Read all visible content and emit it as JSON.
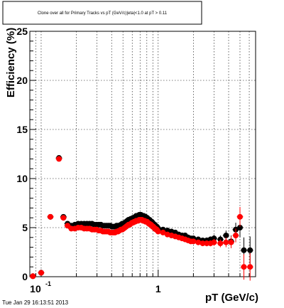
{
  "chart_data": {
    "type": "scatter",
    "title": "Clone  over all for Primary Tracks vs pT (GeV/c)|eta|<1.0 at pT > 0.11",
    "xlabel": "pT (GeV/c)",
    "ylabel": "Efficiency (%)",
    "x_scale": "log",
    "xlim": [
      0.08,
      6.8
    ],
    "ylim": [
      0,
      25
    ],
    "y_ticks": [
      0,
      5,
      10,
      15,
      20,
      25
    ],
    "x_tick_labels": [
      {
        "value": 0.1,
        "base": "10",
        "exp": "-1"
      },
      {
        "value": 1,
        "base": "1",
        "exp": ""
      }
    ],
    "grid": true,
    "timestamp": "Tue Jan 29 16:13:51 2013",
    "series": [
      {
        "color": "#000000",
        "x": [
          0.085,
          0.1,
          0.12,
          0.142,
          0.155,
          0.168,
          0.181,
          0.194,
          0.207,
          0.22,
          0.233,
          0.246,
          0.259,
          0.272,
          0.285,
          0.298,
          0.311,
          0.324,
          0.337,
          0.35,
          0.363,
          0.376,
          0.389,
          0.402,
          0.415,
          0.428,
          0.441,
          0.454,
          0.467,
          0.48,
          0.493,
          0.506,
          0.519,
          0.532,
          0.545,
          0.558,
          0.571,
          0.584,
          0.597,
          0.61,
          0.623,
          0.636,
          0.649,
          0.662,
          0.675,
          0.688,
          0.701,
          0.714,
          0.727,
          0.74,
          0.753,
          0.766,
          0.779,
          0.792,
          0.805,
          0.818,
          0.831,
          0.844,
          0.857,
          0.87,
          0.883,
          0.896,
          0.909,
          0.922,
          0.935,
          0.948,
          0.961,
          0.974,
          0.987,
          1.0,
          1.1,
          1.2,
          1.3,
          1.4,
          1.5,
          1.6,
          1.7,
          1.8,
          1.9,
          2.0,
          2.2,
          2.4,
          2.6,
          2.8,
          3.0,
          3.4,
          3.8,
          4.2,
          4.6,
          5.0,
          5.4,
          6.1
        ],
        "y": [
          0.05,
          0.4,
          6.1,
          12.1,
          6.1,
          5.4,
          5.2,
          5.3,
          5.4,
          5.4,
          5.4,
          5.4,
          5.4,
          5.4,
          5.3,
          5.3,
          5.3,
          5.3,
          5.2,
          5.2,
          5.2,
          5.2,
          5.2,
          5.1,
          5.1,
          5.1,
          5.2,
          5.2,
          5.2,
          5.3,
          5.4,
          5.4,
          5.5,
          5.6,
          5.7,
          5.8,
          5.8,
          5.9,
          5.9,
          6.0,
          6.0,
          6.1,
          6.2,
          6.2,
          6.2,
          6.3,
          6.3,
          6.3,
          6.2,
          6.2,
          6.2,
          6.1,
          6.1,
          6.0,
          6.0,
          5.9,
          5.8,
          5.8,
          5.7,
          5.6,
          5.6,
          5.5,
          5.4,
          5.3,
          5.3,
          5.2,
          5.1,
          5.1,
          5.0,
          4.9,
          4.8,
          4.7,
          4.6,
          4.5,
          4.3,
          4.2,
          4.2,
          4.0,
          3.9,
          3.9,
          3.8,
          3.7,
          3.7,
          3.8,
          3.9,
          3.8,
          4.2,
          3.6,
          4.8,
          5.0,
          2.7,
          2.7
        ],
        "yerr": [
          0.1,
          0.15,
          0.2,
          0.25,
          0.25,
          0.15,
          0.1,
          0.1,
          0.1,
          0.1,
          0.1,
          0.1,
          0.1,
          0.1,
          0.1,
          0.1,
          0.1,
          0.1,
          0.1,
          0.1,
          0.1,
          0.1,
          0.1,
          0.1,
          0.1,
          0.1,
          0.1,
          0.1,
          0.1,
          0.1,
          0.1,
          0.1,
          0.1,
          0.1,
          0.1,
          0.1,
          0.1,
          0.1,
          0.1,
          0.1,
          0.1,
          0.1,
          0.1,
          0.1,
          0.1,
          0.1,
          0.1,
          0.1,
          0.1,
          0.1,
          0.1,
          0.1,
          0.1,
          0.1,
          0.1,
          0.1,
          0.1,
          0.1,
          0.1,
          0.1,
          0.1,
          0.1,
          0.1,
          0.1,
          0.1,
          0.1,
          0.1,
          0.1,
          0.1,
          0.1,
          0.15,
          0.15,
          0.15,
          0.15,
          0.2,
          0.2,
          0.2,
          0.2,
          0.2,
          0.2,
          0.25,
          0.25,
          0.3,
          0.3,
          0.35,
          0.4,
          0.5,
          0.6,
          0.7,
          1.0,
          1.3,
          1.4
        ]
      },
      {
        "color": "#ff0000",
        "x": [
          0.085,
          0.1,
          0.12,
          0.142,
          0.155,
          0.168,
          0.181,
          0.194,
          0.207,
          0.22,
          0.233,
          0.246,
          0.259,
          0.272,
          0.285,
          0.298,
          0.311,
          0.324,
          0.337,
          0.35,
          0.363,
          0.376,
          0.389,
          0.402,
          0.415,
          0.428,
          0.441,
          0.454,
          0.467,
          0.48,
          0.493,
          0.506,
          0.519,
          0.532,
          0.545,
          0.558,
          0.571,
          0.584,
          0.597,
          0.61,
          0.623,
          0.636,
          0.649,
          0.662,
          0.675,
          0.688,
          0.701,
          0.714,
          0.727,
          0.74,
          0.753,
          0.766,
          0.779,
          0.792,
          0.805,
          0.818,
          0.831,
          0.844,
          0.857,
          0.87,
          0.883,
          0.896,
          0.909,
          0.922,
          0.935,
          0.948,
          0.961,
          0.974,
          0.987,
          1.0,
          1.1,
          1.2,
          1.3,
          1.4,
          1.5,
          1.6,
          1.7,
          1.8,
          1.9,
          2.0,
          2.2,
          2.4,
          2.6,
          2.8,
          3.0,
          3.4,
          3.8,
          4.2,
          4.6,
          5.0,
          5.4,
          6.1
        ],
        "y": [
          0.05,
          0.4,
          6.1,
          12.0,
          6.0,
          5.2,
          4.9,
          4.9,
          5.0,
          5.0,
          4.9,
          4.9,
          4.9,
          4.8,
          4.8,
          4.8,
          4.7,
          4.7,
          4.6,
          4.6,
          4.6,
          4.6,
          4.5,
          4.5,
          4.5,
          4.5,
          4.6,
          4.6,
          4.7,
          4.8,
          4.8,
          4.9,
          5.0,
          5.1,
          5.2,
          5.3,
          5.3,
          5.4,
          5.5,
          5.5,
          5.6,
          5.6,
          5.7,
          5.7,
          5.7,
          5.8,
          5.8,
          5.8,
          5.8,
          5.7,
          5.7,
          5.7,
          5.6,
          5.6,
          5.6,
          5.5,
          5.4,
          5.4,
          5.3,
          5.3,
          5.2,
          5.1,
          5.1,
          5.0,
          4.9,
          4.9,
          4.8,
          4.8,
          4.7,
          4.6,
          4.5,
          4.3,
          4.2,
          4.1,
          4.0,
          3.9,
          3.8,
          3.7,
          3.6,
          3.6,
          3.5,
          3.4,
          3.4,
          3.4,
          3.5,
          3.4,
          3.5,
          3.5,
          4.2,
          6.1,
          1.0,
          1.0
        ],
        "yerr": [
          0.1,
          0.15,
          0.2,
          0.25,
          0.25,
          0.15,
          0.1,
          0.1,
          0.1,
          0.1,
          0.1,
          0.1,
          0.1,
          0.1,
          0.1,
          0.1,
          0.1,
          0.1,
          0.1,
          0.1,
          0.1,
          0.1,
          0.1,
          0.1,
          0.1,
          0.1,
          0.1,
          0.1,
          0.1,
          0.1,
          0.1,
          0.1,
          0.1,
          0.1,
          0.1,
          0.1,
          0.1,
          0.1,
          0.1,
          0.1,
          0.1,
          0.1,
          0.1,
          0.1,
          0.1,
          0.1,
          0.1,
          0.1,
          0.1,
          0.1,
          0.1,
          0.1,
          0.1,
          0.1,
          0.1,
          0.1,
          0.1,
          0.1,
          0.1,
          0.1,
          0.1,
          0.1,
          0.1,
          0.1,
          0.1,
          0.1,
          0.1,
          0.1,
          0.1,
          0.1,
          0.15,
          0.15,
          0.15,
          0.15,
          0.2,
          0.2,
          0.2,
          0.2,
          0.2,
          0.2,
          0.25,
          0.25,
          0.3,
          0.3,
          0.35,
          0.4,
          0.5,
          0.6,
          0.7,
          1.0,
          1.3,
          1.4
        ]
      }
    ]
  }
}
